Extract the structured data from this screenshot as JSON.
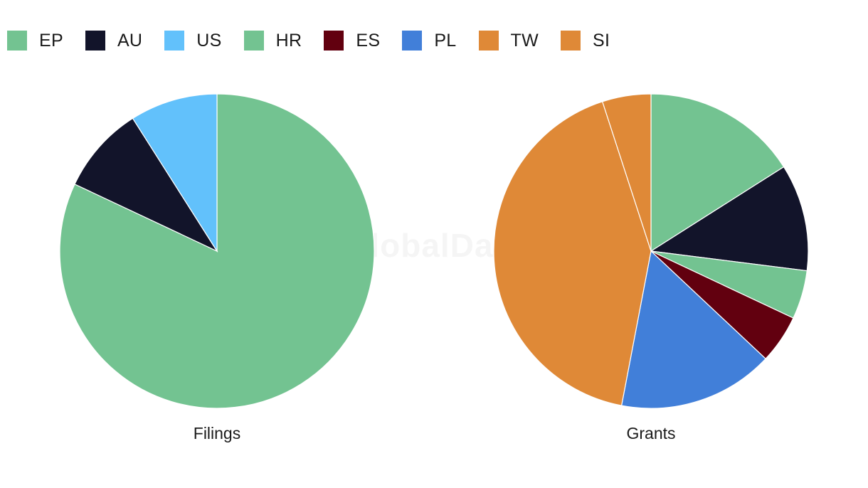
{
  "watermark": "GlobalData",
  "legend": [
    {
      "label": "EP",
      "color": "#73c391"
    },
    {
      "label": "AU",
      "color": "#12142a"
    },
    {
      "label": "US",
      "color": "#62c1fb"
    },
    {
      "label": "HR",
      "color": "#73c391"
    },
    {
      "label": "ES",
      "color": "#62000f"
    },
    {
      "label": "PL",
      "color": "#417fd9"
    },
    {
      "label": "TW",
      "color": "#df8937"
    },
    {
      "label": "SI",
      "color": "#df8937"
    }
  ],
  "chart_data": [
    {
      "type": "pie",
      "title": "Filings",
      "series": [
        {
          "name": "EP",
          "value": 82,
          "color": "#73c391"
        },
        {
          "name": "AU",
          "value": 9,
          "color": "#12142a"
        },
        {
          "name": "US",
          "value": 9,
          "color": "#62c1fb"
        }
      ]
    },
    {
      "type": "pie",
      "title": "Grants",
      "series": [
        {
          "name": "EP",
          "value": 16,
          "color": "#73c391"
        },
        {
          "name": "AU",
          "value": 11,
          "color": "#12142a"
        },
        {
          "name": "HR",
          "value": 5,
          "color": "#73c391"
        },
        {
          "name": "ES",
          "value": 5,
          "color": "#62000f"
        },
        {
          "name": "PL",
          "value": 16,
          "color": "#417fd9"
        },
        {
          "name": "TW",
          "value": 42,
          "color": "#df8937"
        },
        {
          "name": "SI",
          "value": 5,
          "color": "#df8937"
        }
      ]
    }
  ]
}
